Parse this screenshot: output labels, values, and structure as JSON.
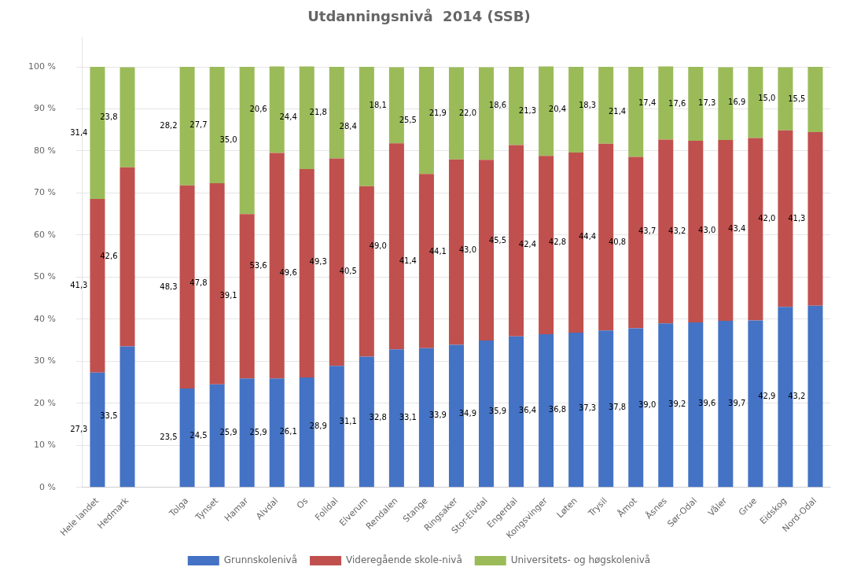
{
  "chart_data": {
    "type": "bar",
    "title": "Utdanningsnivå  2014 (SSB)",
    "categories": [
      "Hele landet",
      "Hedmark",
      null,
      "Tolga",
      "Tynset",
      "Hamar",
      "Alvdal",
      "Os",
      "Folldal",
      "Elverum",
      "Rendalen",
      "Stange",
      "Ringsaker",
      "Stor-Elvdal",
      "Engerdal",
      "Kongsvinger",
      "Løten",
      "Trysil",
      "Åmot",
      "Åsnes",
      "Sør-Odal",
      "Våler",
      "Grue",
      "Eidskog",
      "Nord-Odal"
    ],
    "series": [
      {
        "name": "Grunnskolenivå",
        "color": "#4472C4",
        "values": [
          27.3,
          33.5,
          0,
          23.5,
          24.5,
          25.9,
          25.9,
          26.1,
          28.9,
          31.1,
          32.8,
          33.1,
          33.9,
          34.9,
          35.9,
          36.4,
          36.8,
          37.3,
          37.8,
          39.0,
          39.2,
          39.6,
          39.7,
          42.9,
          43.2
        ],
        "value_labels": [
          "27,3",
          "33,5",
          null,
          "23,5",
          "24,5",
          "25,9",
          "25,9",
          "26,1",
          "28,9",
          "31,1",
          "32,8",
          "33,1",
          "33,9",
          "34,9",
          "35,9",
          "36,4",
          "36,8",
          "37,3",
          "37,8",
          "39,0",
          "39,2",
          "39,6",
          "39,7",
          "42,9",
          "43,2"
        ]
      },
      {
        "name": "Videregående skole-nivå",
        "color": "#C0504D",
        "values": [
          41.3,
          42.6,
          0,
          48.3,
          47.8,
          39.1,
          53.6,
          49.6,
          49.3,
          40.5,
          49.0,
          41.4,
          44.1,
          43.0,
          45.5,
          42.4,
          42.8,
          44.4,
          40.8,
          43.7,
          43.2,
          43.0,
          43.4,
          42.0,
          41.3
        ],
        "value_labels": [
          "41,3",
          "42,6",
          null,
          "48,3",
          "47,8",
          "39,1",
          "53,6",
          "49,6",
          "49,3",
          "40,5",
          "49,0",
          "41,4",
          "44,1",
          "43,0",
          "45,5",
          "42,4",
          "42,8",
          "44,4",
          "40,8",
          "43,7",
          "43,2",
          "43,0",
          "43,4",
          "42,0",
          "41,3"
        ]
      },
      {
        "name": "Universitets- og høgskolenivå",
        "color": "#9BBB59",
        "values": [
          31.4,
          23.8,
          0,
          28.2,
          27.7,
          35.0,
          20.6,
          24.4,
          21.8,
          28.4,
          18.1,
          25.5,
          21.9,
          22.0,
          18.6,
          21.3,
          20.4,
          18.3,
          21.4,
          17.4,
          17.6,
          17.3,
          16.9,
          15.0,
          15.5
        ],
        "value_labels": [
          "31,4",
          "23,8",
          null,
          "28,2",
          "27,7",
          "35,0",
          "20,6",
          "24,4",
          "21,8",
          "28,4",
          "18,1",
          "25,5",
          "21,9",
          "22,0",
          "18,6",
          "21,3",
          "20,4",
          "18,3",
          "21,4",
          "17,4",
          "17,6",
          "17,3",
          "16,9",
          "15,0",
          "15,5"
        ]
      }
    ],
    "stacked": true,
    "ylim": [
      0,
      107
    ],
    "yticks": [
      {
        "value": 0,
        "label": "0 %"
      },
      {
        "value": 10,
        "label": "10 %"
      },
      {
        "value": 20,
        "label": "20 %"
      },
      {
        "value": 30,
        "label": "30 %"
      },
      {
        "value": 40,
        "label": "40 %"
      },
      {
        "value": 50,
        "label": "50 %"
      },
      {
        "value": 60,
        "label": "60 %"
      },
      {
        "value": 70,
        "label": "70 %"
      },
      {
        "value": 80,
        "label": "80 %"
      },
      {
        "value": 90,
        "label": "90 %"
      },
      {
        "value": 100,
        "label": "100 %"
      }
    ],
    "grid": true,
    "legend": "bottom",
    "data_labels": true
  }
}
